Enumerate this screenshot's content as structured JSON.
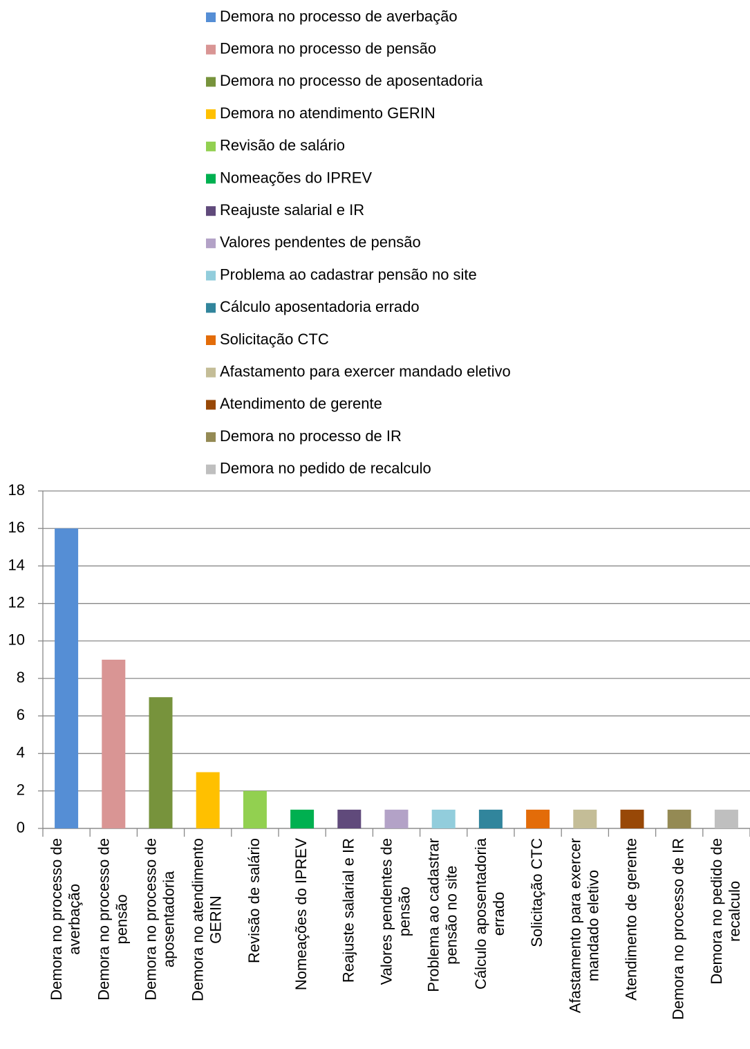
{
  "chart_data": {
    "type": "bar",
    "categories": [
      "Demora no processo de averbação",
      "Demora no processo de pensão",
      "Demora no processo de aposentadoria",
      "Demora no atendimento GERIN",
      "Revisão de salário",
      "Nomeações do IPREV",
      "Reajuste salarial e IR",
      "Valores pendentes de pensão",
      "Problema ao cadastrar pensão no site",
      "Cálculo aposentadoria errado",
      "Solicitação CTC",
      "Afastamento para exercer mandado eletivo",
      "Atendimento de gerente",
      "Demora no processo de IR",
      "Demora no pedido de recalculo"
    ],
    "values": [
      16,
      9,
      7,
      3,
      2,
      1,
      1,
      1,
      1,
      1,
      1,
      1,
      1,
      1,
      1
    ],
    "colors": [
      "#558ed5",
      "#d99594",
      "#77933c",
      "#ffc000",
      "#92d050",
      "#00b050",
      "#604a7b",
      "#b3a2c7",
      "#92cddc",
      "#31859c",
      "#e36c09",
      "#c4bd97",
      "#984807",
      "#948a54",
      "#bfbfbf"
    ],
    "ylim": [
      0,
      18
    ],
    "yticks": [
      0,
      2,
      4,
      6,
      8,
      10,
      12,
      14,
      16,
      18
    ],
    "grid": true,
    "legend": "top"
  }
}
